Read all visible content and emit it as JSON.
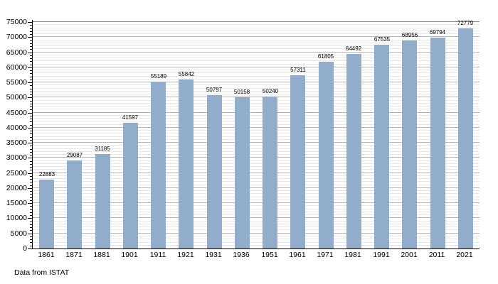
{
  "caption": "Data from ISTAT",
  "colors": {
    "background": "#ffffff",
    "bar_fill": "#92adcb",
    "axis": "#000000",
    "major_grid": "#b4b4b4",
    "minor_grid": "#e7e7e7",
    "top_grid": "#8a8a8a",
    "text": "#000000"
  },
  "chart_data": {
    "type": "bar",
    "title": "",
    "xlabel": "",
    "ylabel": "",
    "categories": [
      "1861",
      "1871",
      "1881",
      "1901",
      "1911",
      "1921",
      "1931",
      "1936",
      "1951",
      "1961",
      "1971",
      "1981",
      "1991",
      "2001",
      "2011",
      "2021"
    ],
    "values": [
      22883,
      29087,
      31185,
      41597,
      55189,
      55842,
      50797,
      50158,
      50240,
      57311,
      61805,
      64492,
      67535,
      68956,
      69794,
      72779
    ],
    "ylim": [
      0,
      75000
    ],
    "y_major_step": 5000,
    "y_minor_step": 1000,
    "y_tick_labels": [
      "0",
      "5000",
      "10000",
      "15000",
      "20000",
      "25000",
      "30000",
      "35000",
      "40000",
      "45000",
      "50000",
      "55000",
      "60000",
      "65000",
      "70000",
      "75000"
    ],
    "grid": "on",
    "legend": "none",
    "bar_value_labels_visible": true,
    "annotation": "Data from ISTAT"
  }
}
